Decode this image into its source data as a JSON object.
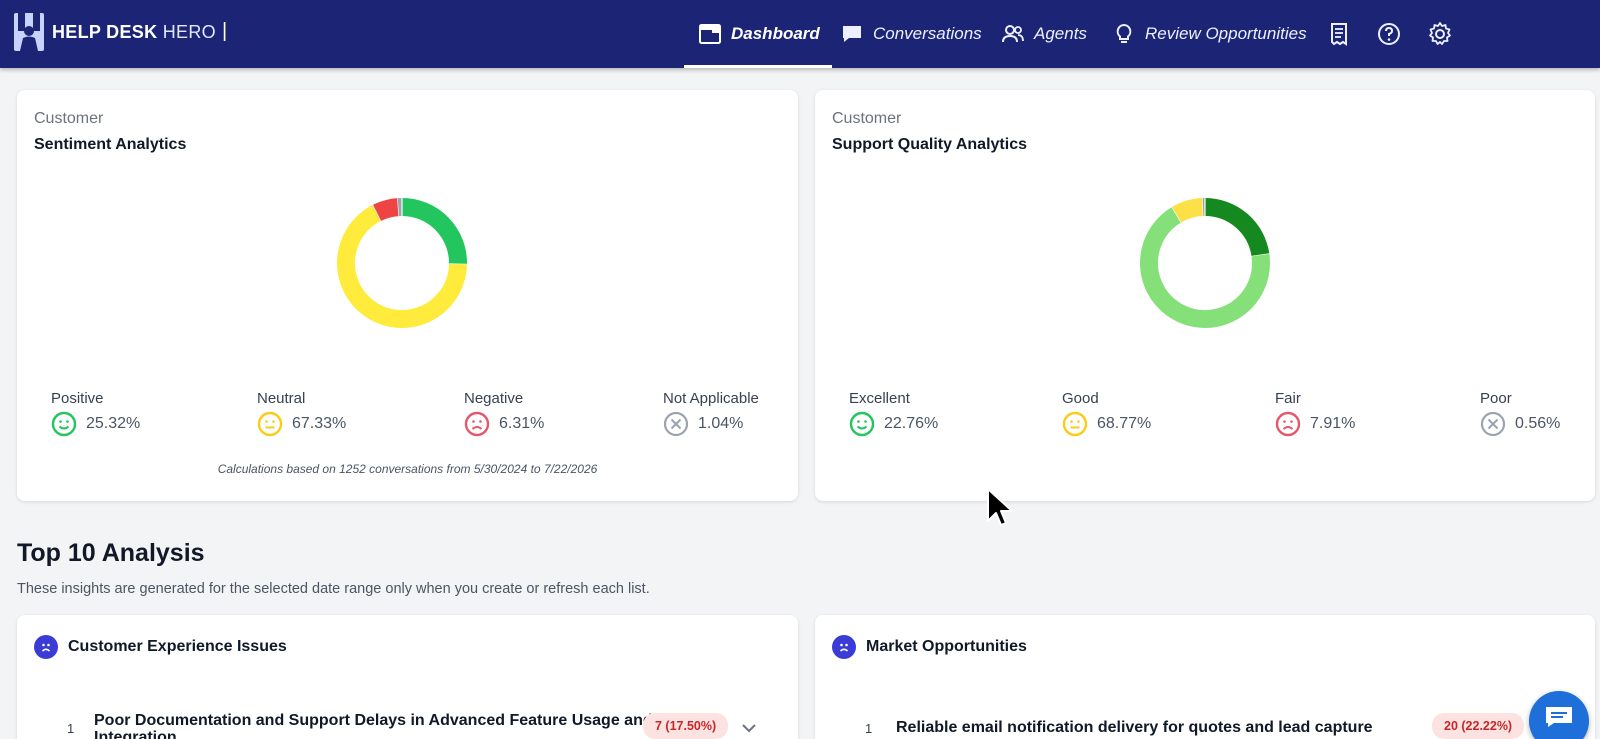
{
  "brand": {
    "name_bold": "HELP DESK",
    "name_light": "HERO",
    "separator": "|"
  },
  "nav": {
    "items": [
      {
        "label": "Dashboard",
        "icon": "window-icon",
        "active": true
      },
      {
        "label": "Conversations",
        "icon": "chat-bubble-icon",
        "active": false
      },
      {
        "label": "Agents",
        "icon": "people-icon",
        "active": false
      },
      {
        "label": "Review Opportunities",
        "icon": "lightbulb-icon",
        "active": false
      }
    ],
    "icon_buttons": [
      "receipt-icon",
      "help-icon",
      "gear-icon"
    ]
  },
  "sentiment": {
    "subtitle": "Customer",
    "title": "Sentiment Analytics",
    "legend": [
      {
        "label": "Positive",
        "value": "25.32%",
        "icon": "smile-face-icon",
        "color": "#22c55e"
      },
      {
        "label": "Neutral",
        "value": "67.33%",
        "icon": "neutral-face-icon",
        "color": "#facc15"
      },
      {
        "label": "Negative",
        "value": "6.31%",
        "icon": "sad-face-icon",
        "color": "#ef4444"
      },
      {
        "label": "Not Applicable",
        "value": "1.04%",
        "icon": "x-circle-icon",
        "color": "#9ca3af"
      }
    ],
    "note": "Calculations based on 1252 conversations from 5/30/2024 to 7/22/2026"
  },
  "quality": {
    "subtitle": "Customer",
    "title": "Support Quality Analytics",
    "legend": [
      {
        "label": "Excellent",
        "value": "22.76%",
        "icon": "smile-face-icon",
        "color": "#15803d"
      },
      {
        "label": "Good",
        "value": "68.77%",
        "icon": "neutral-face-icon",
        "color": "#86e07a"
      },
      {
        "label": "Fair",
        "value": "7.91%",
        "icon": "sad-face-icon",
        "color": "#fde047"
      },
      {
        "label": "Poor",
        "value": "0.56%",
        "icon": "x-circle-icon",
        "color": "#9ca3af"
      }
    ]
  },
  "chart_data": [
    {
      "type": "pie",
      "categories": [
        "Positive",
        "Neutral",
        "Negative",
        "Not Applicable"
      ],
      "values": [
        25.32,
        67.33,
        6.31,
        1.04
      ],
      "colors": [
        "#22c55e",
        "#ffeb3b",
        "#ef4444",
        "#9ca3af"
      ],
      "title": "Sentiment Analytics"
    },
    {
      "type": "pie",
      "categories": [
        "Excellent",
        "Good",
        "Fair",
        "Poor"
      ],
      "values": [
        22.76,
        68.77,
        7.91,
        0.56
      ],
      "colors": [
        "#15891f",
        "#86e07a",
        "#fde047",
        "#9ca3af"
      ],
      "title": "Support Quality Analytics"
    }
  ],
  "top10": {
    "title": "Top 10 Analysis",
    "description": "These insights are generated for the selected date range only when you create or refresh each list.",
    "panels": [
      {
        "title": "Customer Experience Issues",
        "rows": [
          {
            "num": "1",
            "text": "Poor Documentation and Support Delays in Advanced Feature Usage and Integration",
            "badge": "7 (17.50%)"
          }
        ]
      },
      {
        "title": "Market Opportunities",
        "rows": [
          {
            "num": "1",
            "text": "Reliable email notification delivery for quotes and lead capture",
            "badge": "20 (22.22%)"
          }
        ]
      }
    ]
  }
}
